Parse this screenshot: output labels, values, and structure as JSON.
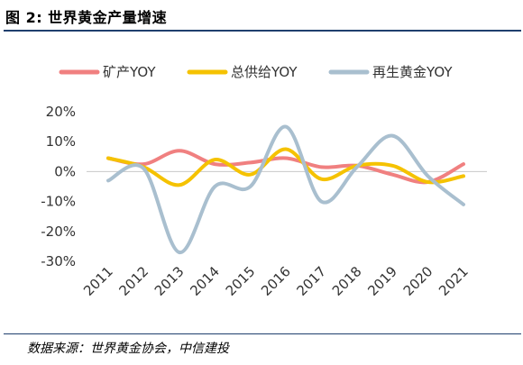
{
  "figure": {
    "title": "图 2: 世界黄金产量增速",
    "source": "数据来源：世界黄金协会，中信建投"
  },
  "chart_data": {
    "type": "line",
    "title": "",
    "xlabel": "",
    "ylabel": "",
    "categories": [
      "2011",
      "2012",
      "2013",
      "2014",
      "2015",
      "2016",
      "2017",
      "2018",
      "2019",
      "2020",
      "2021"
    ],
    "ylim": [
      -30,
      20
    ],
    "yticks": [
      20,
      10,
      0,
      -10,
      -20,
      -30
    ],
    "ytick_labels": [
      "20%",
      "10%",
      "0%",
      "-10%",
      "-20%",
      "-30%"
    ],
    "grid": false,
    "legend_position": "top",
    "series": [
      {
        "name": "矿产YOY",
        "color": "#f08080",
        "values": [
          4.5,
          2.5,
          7.0,
          2.5,
          3.0,
          4.5,
          1.5,
          2.0,
          -1.0,
          -3.5,
          2.5
        ]
      },
      {
        "name": "总供给YOY",
        "color": "#f5c200",
        "values": [
          4.5,
          1.5,
          -4.5,
          4.0,
          -1.0,
          7.5,
          -2.5,
          2.0,
          2.0,
          -3.5,
          -1.5
        ]
      },
      {
        "name": "再生黄金YOY",
        "color": "#a9bfcf",
        "values": [
          -3.0,
          1.0,
          -27.0,
          -5.0,
          -5.0,
          15.0,
          -10.0,
          1.5,
          12.0,
          -1.5,
          -11.0
        ]
      }
    ]
  }
}
